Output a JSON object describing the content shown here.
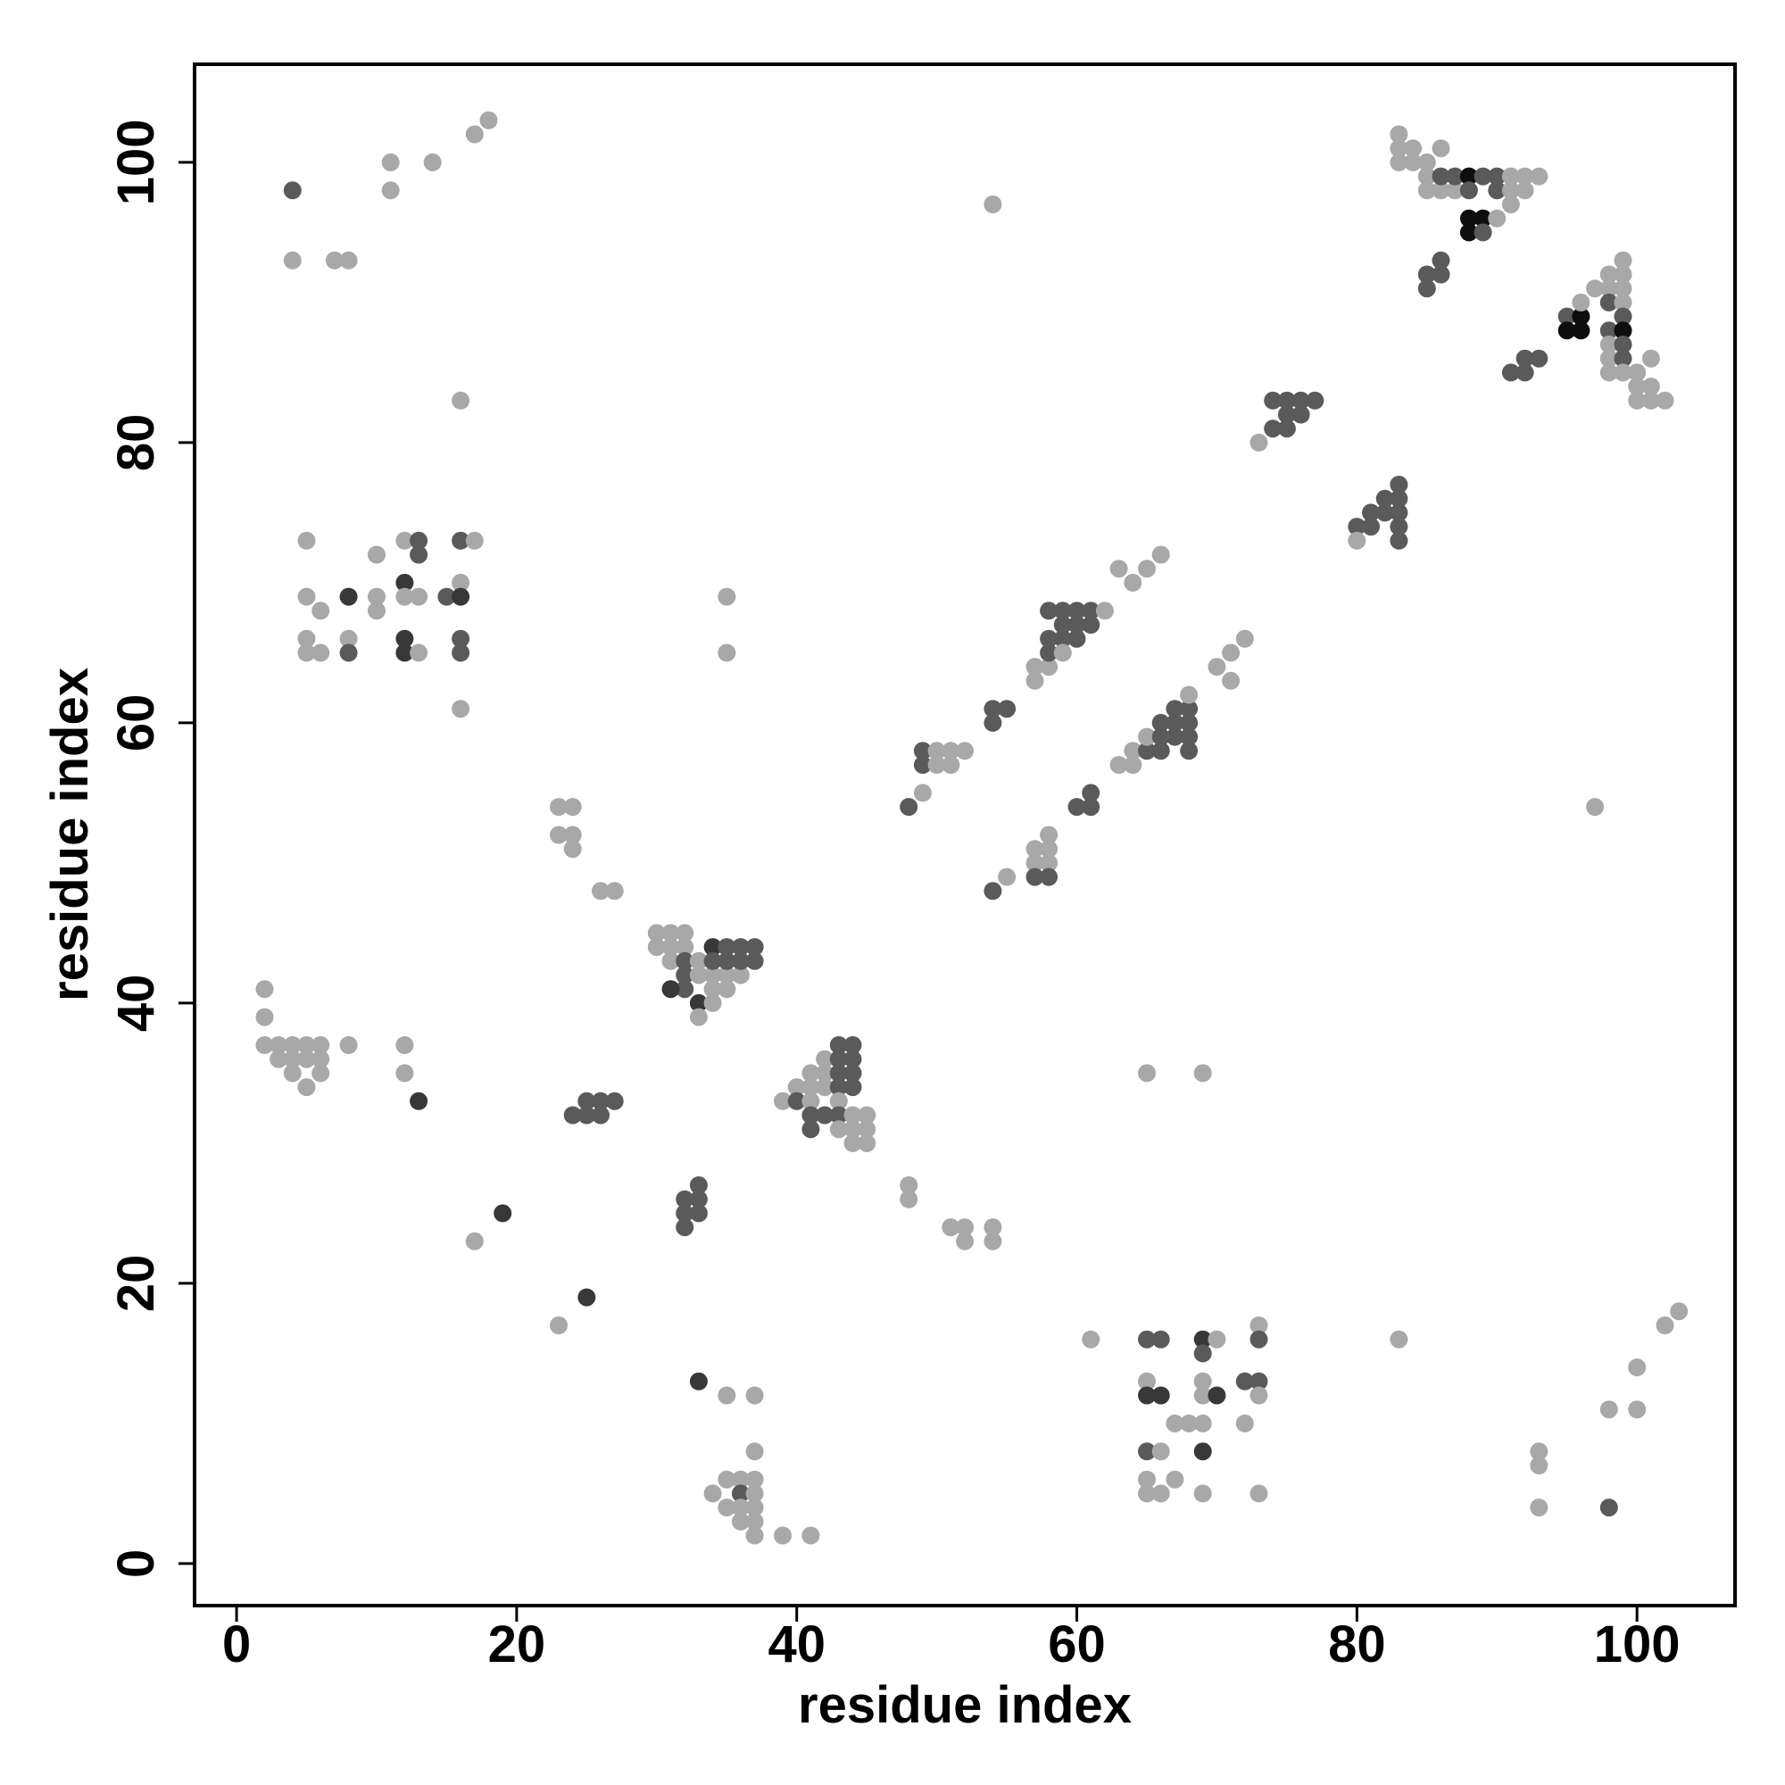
{
  "chart_data": {
    "type": "scatter",
    "title": "",
    "xlabel": "residue index",
    "ylabel": "residue index",
    "xlim": [
      -3,
      107
    ],
    "ylim": [
      -3,
      107
    ],
    "xticks": [
      0,
      20,
      40,
      60,
      80,
      100
    ],
    "yticks": [
      0,
      20,
      40,
      60,
      80,
      100
    ],
    "grid": false,
    "legend": "none",
    "shade_colors": {
      "1": "#a8a8a8",
      "2": "#5a5a5a",
      "3": "#383838",
      "4": "#0e0e0e"
    },
    "points": [
      [
        4,
        98,
        2
      ],
      [
        4,
        93,
        1
      ],
      [
        7,
        93,
        1
      ],
      [
        8,
        93,
        1
      ],
      [
        11,
        100,
        1
      ],
      [
        11,
        98,
        1
      ],
      [
        14,
        100,
        1
      ],
      [
        17,
        102,
        1
      ],
      [
        18,
        103,
        1
      ],
      [
        5,
        73,
        1
      ],
      [
        5,
        69,
        1
      ],
      [
        6,
        68,
        1
      ],
      [
        5,
        66,
        1
      ],
      [
        5,
        65,
        1
      ],
      [
        6,
        65,
        1
      ],
      [
        8,
        69,
        3
      ],
      [
        8,
        66,
        1
      ],
      [
        8,
        65,
        2
      ],
      [
        10,
        72,
        1
      ],
      [
        10,
        69,
        1
      ],
      [
        10,
        68,
        1
      ],
      [
        12,
        73,
        1
      ],
      [
        13,
        73,
        2
      ],
      [
        13,
        72,
        2
      ],
      [
        12,
        70,
        3
      ],
      [
        12,
        69,
        1
      ],
      [
        13,
        69,
        1
      ],
      [
        12,
        66,
        3
      ],
      [
        12,
        65,
        3
      ],
      [
        13,
        65,
        1
      ],
      [
        15,
        69,
        2
      ],
      [
        16,
        73,
        2
      ],
      [
        17,
        73,
        1
      ],
      [
        16,
        70,
        1
      ],
      [
        16,
        69,
        3
      ],
      [
        16,
        66,
        2
      ],
      [
        16,
        65,
        2
      ],
      [
        16,
        61,
        1
      ],
      [
        16,
        83,
        1
      ],
      [
        2,
        41,
        1
      ],
      [
        2,
        39,
        1
      ],
      [
        2,
        37,
        1
      ],
      [
        3,
        37,
        1
      ],
      [
        3,
        36,
        1
      ],
      [
        4,
        37,
        1
      ],
      [
        4,
        36,
        1
      ],
      [
        4,
        35,
        1
      ],
      [
        5,
        37,
        1
      ],
      [
        5,
        36,
        1
      ],
      [
        5,
        34,
        1
      ],
      [
        6,
        37,
        1
      ],
      [
        6,
        36,
        1
      ],
      [
        6,
        35,
        1
      ],
      [
        8,
        37,
        1
      ],
      [
        12,
        37,
        1
      ],
      [
        12,
        35,
        1
      ],
      [
        13,
        33,
        3
      ],
      [
        19,
        25,
        3
      ],
      [
        17,
        23,
        1
      ],
      [
        23,
        17,
        1
      ],
      [
        25,
        19,
        3
      ],
      [
        23,
        54,
        1
      ],
      [
        24,
        54,
        1
      ],
      [
        23,
        52,
        1
      ],
      [
        24,
        52,
        1
      ],
      [
        24,
        51,
        1
      ],
      [
        26,
        48,
        1
      ],
      [
        27,
        48,
        1
      ],
      [
        24,
        32,
        2
      ],
      [
        25,
        33,
        2
      ],
      [
        25,
        32,
        2
      ],
      [
        26,
        33,
        2
      ],
      [
        26,
        32,
        2
      ],
      [
        27,
        33,
        2
      ],
      [
        30,
        45,
        1
      ],
      [
        31,
        45,
        1
      ],
      [
        32,
        45,
        1
      ],
      [
        30,
        44,
        1
      ],
      [
        31,
        44,
        1
      ],
      [
        32,
        44,
        1
      ],
      [
        31,
        43,
        1
      ],
      [
        32,
        43,
        2
      ],
      [
        33,
        43,
        1
      ],
      [
        32,
        42,
        2
      ],
      [
        33,
        42,
        1
      ],
      [
        32,
        41,
        2
      ],
      [
        31,
        41,
        3
      ],
      [
        33,
        40,
        3
      ],
      [
        34,
        40,
        1
      ],
      [
        33,
        39,
        1
      ],
      [
        34,
        41,
        1
      ],
      [
        35,
        41,
        1
      ],
      [
        34,
        42,
        1
      ],
      [
        35,
        42,
        1
      ],
      [
        36,
        42,
        1
      ],
      [
        34,
        44,
        3
      ],
      [
        35,
        44,
        2
      ],
      [
        36,
        44,
        2
      ],
      [
        37,
        44,
        2
      ],
      [
        34,
        43,
        2
      ],
      [
        35,
        43,
        2
      ],
      [
        36,
        43,
        2
      ],
      [
        37,
        43,
        2
      ],
      [
        35,
        69,
        1
      ],
      [
        35,
        65,
        1
      ],
      [
        32,
        26,
        2
      ],
      [
        33,
        27,
        2
      ],
      [
        33,
        26,
        2
      ],
      [
        32,
        25,
        2
      ],
      [
        33,
        25,
        2
      ],
      [
        32,
        24,
        2
      ],
      [
        33,
        13,
        3
      ],
      [
        35,
        12,
        1
      ],
      [
        37,
        12,
        1
      ],
      [
        37,
        8,
        1
      ],
      [
        35,
        6,
        1
      ],
      [
        36,
        6,
        1
      ],
      [
        37,
        6,
        1
      ],
      [
        36,
        5,
        2
      ],
      [
        37,
        5,
        1
      ],
      [
        34,
        5,
        1
      ],
      [
        35,
        4,
        1
      ],
      [
        36,
        4,
        1
      ],
      [
        37,
        4,
        1
      ],
      [
        36,
        3,
        1
      ],
      [
        37,
        3,
        1
      ],
      [
        37,
        2,
        1
      ],
      [
        39,
        2,
        1
      ],
      [
        41,
        2,
        1
      ],
      [
        39,
        33,
        1
      ],
      [
        40,
        34,
        1
      ],
      [
        40,
        33,
        2
      ],
      [
        41,
        35,
        1
      ],
      [
        41,
        34,
        1
      ],
      [
        41,
        33,
        1
      ],
      [
        41,
        32,
        2
      ],
      [
        41,
        31,
        2
      ],
      [
        42,
        36,
        1
      ],
      [
        42,
        35,
        1
      ],
      [
        42,
        34,
        1
      ],
      [
        42,
        32,
        2
      ],
      [
        43,
        37,
        2
      ],
      [
        43,
        36,
        2
      ],
      [
        43,
        35,
        2
      ],
      [
        43,
        34,
        2
      ],
      [
        43,
        33,
        1
      ],
      [
        43,
        32,
        2
      ],
      [
        44,
        37,
        2
      ],
      [
        44,
        36,
        2
      ],
      [
        44,
        35,
        2
      ],
      [
        44,
        34,
        2
      ],
      [
        43,
        31,
        1
      ],
      [
        44,
        32,
        1
      ],
      [
        45,
        32,
        1
      ],
      [
        44,
        31,
        1
      ],
      [
        45,
        31,
        1
      ],
      [
        44,
        30,
        1
      ],
      [
        45,
        30,
        1
      ],
      [
        48,
        27,
        1
      ],
      [
        48,
        26,
        1
      ],
      [
        51,
        24,
        1
      ],
      [
        52,
        24,
        1
      ],
      [
        52,
        23,
        1
      ],
      [
        54,
        24,
        1
      ],
      [
        54,
        23,
        1
      ],
      [
        48,
        54,
        2
      ],
      [
        49,
        58,
        2
      ],
      [
        49,
        57,
        2
      ],
      [
        49,
        55,
        1
      ],
      [
        50,
        58,
        1
      ],
      [
        50,
        57,
        1
      ],
      [
        51,
        58,
        1
      ],
      [
        51,
        57,
        1
      ],
      [
        52,
        58,
        1
      ],
      [
        54,
        61,
        2
      ],
      [
        55,
        61,
        2
      ],
      [
        54,
        60,
        2
      ],
      [
        54,
        48,
        2
      ],
      [
        55,
        49,
        1
      ],
      [
        57,
        51,
        1
      ],
      [
        57,
        50,
        1
      ],
      [
        57,
        49,
        2
      ],
      [
        58,
        52,
        1
      ],
      [
        58,
        51,
        1
      ],
      [
        58,
        50,
        1
      ],
      [
        58,
        49,
        2
      ],
      [
        54,
        97,
        1
      ],
      [
        57,
        64,
        1
      ],
      [
        57,
        63,
        1
      ],
      [
        58,
        64,
        1
      ],
      [
        58,
        66,
        2
      ],
      [
        58,
        65,
        2
      ],
      [
        58,
        68,
        2
      ],
      [
        59,
        68,
        2
      ],
      [
        60,
        68,
        2
      ],
      [
        61,
        68,
        2
      ],
      [
        59,
        67,
        2
      ],
      [
        60,
        67,
        2
      ],
      [
        61,
        67,
        2
      ],
      [
        59,
        66,
        2
      ],
      [
        60,
        66,
        2
      ],
      [
        59,
        65,
        1
      ],
      [
        62,
        68,
        1
      ],
      [
        63,
        71,
        1
      ],
      [
        64,
        70,
        1
      ],
      [
        65,
        71,
        1
      ],
      [
        66,
        72,
        1
      ],
      [
        60,
        54,
        2
      ],
      [
        61,
        55,
        2
      ],
      [
        61,
        54,
        2
      ],
      [
        63,
        57,
        1
      ],
      [
        64,
        57,
        1
      ],
      [
        64,
        58,
        1
      ],
      [
        65,
        58,
        2
      ],
      [
        65,
        59,
        1
      ],
      [
        66,
        58,
        2
      ],
      [
        66,
        60,
        2
      ],
      [
        66,
        59,
        2
      ],
      [
        67,
        60,
        2
      ],
      [
        67,
        59,
        2
      ],
      [
        67,
        61,
        2
      ],
      [
        68,
        61,
        2
      ],
      [
        68,
        60,
        2
      ],
      [
        68,
        59,
        2
      ],
      [
        68,
        58,
        2
      ],
      [
        68,
        62,
        1
      ],
      [
        70,
        64,
        1
      ],
      [
        71,
        65,
        1
      ],
      [
        71,
        63,
        1
      ],
      [
        72,
        66,
        1
      ],
      [
        65,
        35,
        1
      ],
      [
        69,
        35,
        1
      ],
      [
        61,
        16,
        1
      ],
      [
        65,
        16,
        2
      ],
      [
        66,
        16,
        2
      ],
      [
        69,
        16,
        3
      ],
      [
        70,
        16,
        1
      ],
      [
        69,
        15,
        2
      ],
      [
        65,
        13,
        1
      ],
      [
        65,
        12,
        3
      ],
      [
        66,
        12,
        3
      ],
      [
        69,
        13,
        1
      ],
      [
        69,
        12,
        1
      ],
      [
        70,
        12,
        3
      ],
      [
        67,
        10,
        1
      ],
      [
        68,
        10,
        1
      ],
      [
        69,
        10,
        1
      ],
      [
        72,
        10,
        1
      ],
      [
        72,
        13,
        2
      ],
      [
        73,
        13,
        2
      ],
      [
        73,
        12,
        1
      ],
      [
        73,
        17,
        1
      ],
      [
        73,
        16,
        2
      ],
      [
        65,
        8,
        2
      ],
      [
        66,
        8,
        1
      ],
      [
        69,
        8,
        3
      ],
      [
        65,
        6,
        1
      ],
      [
        67,
        6,
        1
      ],
      [
        65,
        5,
        1
      ],
      [
        66,
        5,
        1
      ],
      [
        69,
        5,
        1
      ],
      [
        73,
        5,
        1
      ],
      [
        73,
        80,
        1
      ],
      [
        74,
        81,
        2
      ],
      [
        74,
        83,
        2
      ],
      [
        75,
        83,
        2
      ],
      [
        76,
        83,
        2
      ],
      [
        77,
        83,
        2
      ],
      [
        75,
        82,
        2
      ],
      [
        76,
        82,
        2
      ],
      [
        75,
        81,
        2
      ],
      [
        80,
        74,
        2
      ],
      [
        80,
        73,
        1
      ],
      [
        81,
        75,
        2
      ],
      [
        81,
        74,
        2
      ],
      [
        82,
        76,
        2
      ],
      [
        82,
        75,
        2
      ],
      [
        83,
        77,
        2
      ],
      [
        83,
        76,
        2
      ],
      [
        83,
        75,
        2
      ],
      [
        83,
        74,
        2
      ],
      [
        83,
        73,
        2
      ],
      [
        83,
        102,
        1
      ],
      [
        83,
        101,
        1
      ],
      [
        84,
        101,
        1
      ],
      [
        83,
        100,
        1
      ],
      [
        84,
        100,
        1
      ],
      [
        85,
        100,
        1
      ],
      [
        85,
        99,
        1
      ],
      [
        86,
        101,
        1
      ],
      [
        85,
        98,
        1
      ],
      [
        86,
        98,
        1
      ],
      [
        87,
        98,
        1
      ],
      [
        86,
        99,
        2
      ],
      [
        87,
        99,
        2
      ],
      [
        88,
        99,
        4
      ],
      [
        89,
        99,
        2
      ],
      [
        90,
        99,
        2
      ],
      [
        88,
        98,
        2
      ],
      [
        90,
        98,
        2
      ],
      [
        88,
        96,
        4
      ],
      [
        89,
        96,
        4
      ],
      [
        90,
        96,
        1
      ],
      [
        88,
        95,
        4
      ],
      [
        89,
        95,
        2
      ],
      [
        91,
        99,
        1
      ],
      [
        92,
        99,
        1
      ],
      [
        93,
        99,
        1
      ],
      [
        91,
        98,
        1
      ],
      [
        92,
        98,
        1
      ],
      [
        91,
        97,
        1
      ],
      [
        85,
        92,
        2
      ],
      [
        86,
        92,
        2
      ],
      [
        86,
        93,
        2
      ],
      [
        85,
        91,
        2
      ],
      [
        83,
        16,
        1
      ],
      [
        91,
        85,
        2
      ],
      [
        92,
        85,
        2
      ],
      [
        92,
        86,
        2
      ],
      [
        93,
        86,
        2
      ],
      [
        95,
        89,
        2
      ],
      [
        95,
        88,
        4
      ],
      [
        96,
        89,
        4
      ],
      [
        96,
        88,
        4
      ],
      [
        96,
        90,
        1
      ],
      [
        97,
        91,
        1
      ],
      [
        98,
        91,
        1
      ],
      [
        98,
        92,
        1
      ],
      [
        99,
        93,
        1
      ],
      [
        99,
        92,
        1
      ],
      [
        99,
        91,
        1
      ],
      [
        98,
        90,
        2
      ],
      [
        99,
        90,
        1
      ],
      [
        99,
        89,
        2
      ],
      [
        98,
        88,
        2
      ],
      [
        99,
        88,
        4
      ],
      [
        98,
        87,
        1
      ],
      [
        99,
        87,
        2
      ],
      [
        98,
        86,
        1
      ],
      [
        99,
        86,
        2
      ],
      [
        98,
        85,
        1
      ],
      [
        99,
        85,
        1
      ],
      [
        100,
        85,
        1
      ],
      [
        100,
        84,
        1
      ],
      [
        101,
        84,
        1
      ],
      [
        101,
        86,
        1
      ],
      [
        100,
        83,
        1
      ],
      [
        101,
        83,
        1
      ],
      [
        102,
        83,
        1
      ],
      [
        97,
        54,
        1
      ],
      [
        93,
        8,
        1
      ],
      [
        93,
        7,
        1
      ],
      [
        93,
        4,
        1
      ],
      [
        98,
        4,
        2
      ],
      [
        98,
        11,
        1
      ],
      [
        100,
        11,
        1
      ],
      [
        100,
        14,
        1
      ],
      [
        102,
        17,
        1
      ],
      [
        103,
        18,
        1
      ]
    ]
  }
}
